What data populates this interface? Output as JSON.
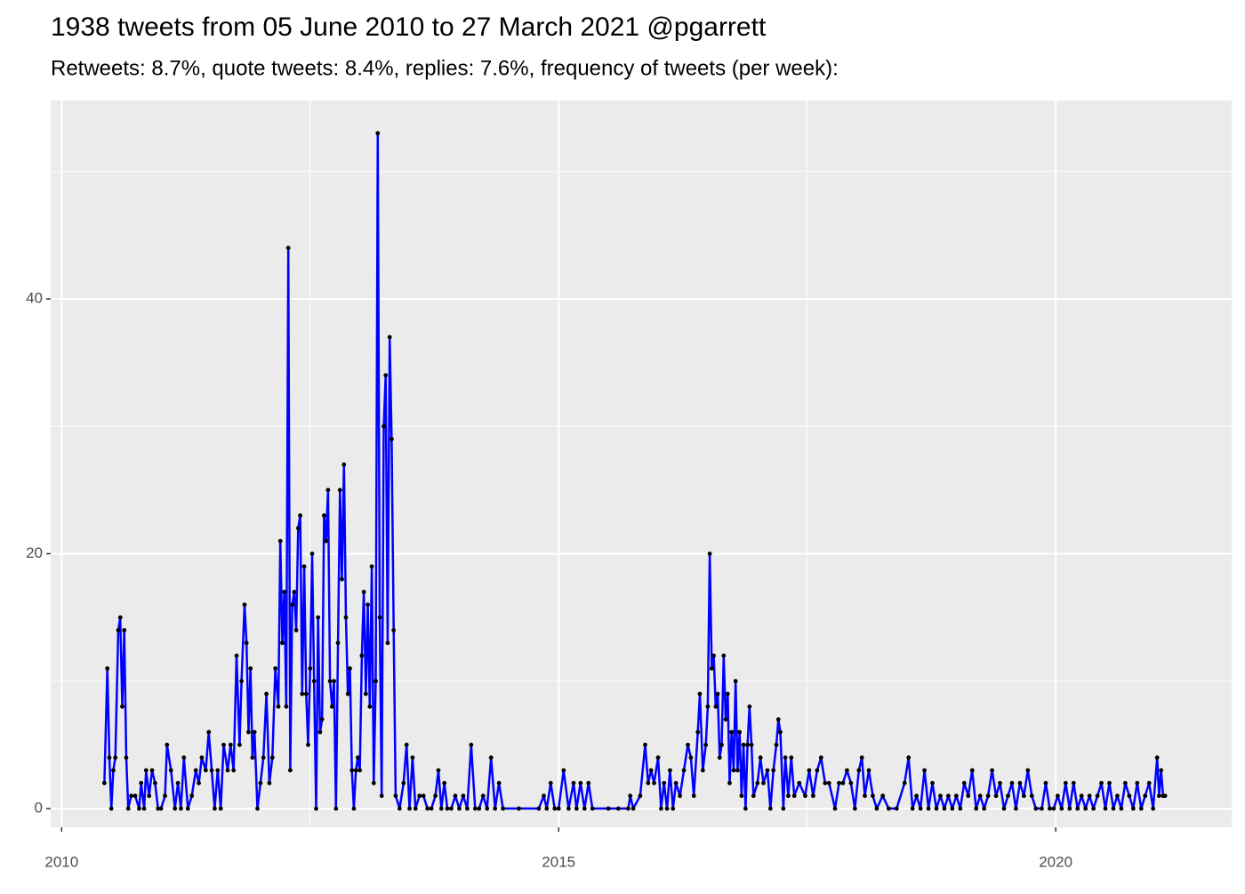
{
  "chart_data": {
    "type": "line",
    "title": "1938 tweets from 05 June 2010 to 27 March 2021 @pgarrett",
    "subtitle": "Retweets: 8.7%, quote tweets: 8.4%, replies: 7.6%, frequency of tweets (per week):",
    "color": "#0000ff",
    "point_color": "#000000",
    "grid": true,
    "xlim": [
      2009.89,
      2021.77
    ],
    "xticks": [
      2010,
      2015,
      2020
    ],
    "xminor": [
      2012.5,
      2017.5
    ],
    "ylim": [
      -1.47,
      55.57
    ],
    "yticks": [
      0,
      20,
      40
    ],
    "yminor": [
      10,
      30,
      50
    ],
    "x": [
      2010.43,
      2010.46,
      2010.48,
      2010.5,
      2010.52,
      2010.54,
      2010.57,
      2010.59,
      2010.61,
      2010.63,
      2010.65,
      2010.67,
      2010.7,
      2010.74,
      2010.78,
      2010.8,
      2010.83,
      2010.85,
      2010.88,
      2010.91,
      2010.94,
      2010.97,
      2011.0,
      2011.04,
      2011.06,
      2011.1,
      2011.14,
      2011.17,
      2011.2,
      2011.23,
      2011.27,
      2011.31,
      2011.35,
      2011.38,
      2011.41,
      2011.45,
      2011.48,
      2011.51,
      2011.54,
      2011.57,
      2011.6,
      2011.63,
      2011.67,
      2011.7,
      2011.73,
      2011.76,
      2011.79,
      2011.81,
      2011.84,
      2011.86,
      2011.88,
      2011.9,
      2011.92,
      2011.94,
      2011.97,
      2012.0,
      2012.03,
      2012.06,
      2012.09,
      2012.12,
      2012.15,
      2012.18,
      2012.2,
      2012.22,
      2012.24,
      2012.26,
      2012.28,
      2012.3,
      2012.32,
      2012.34,
      2012.36,
      2012.38,
      2012.4,
      2012.42,
      2012.44,
      2012.46,
      2012.48,
      2012.5,
      2012.52,
      2012.54,
      2012.56,
      2012.58,
      2012.6,
      2012.62,
      2012.64,
      2012.66,
      2012.68,
      2012.7,
      2012.72,
      2012.74,
      2012.76,
      2012.78,
      2012.8,
      2012.82,
      2012.84,
      2012.86,
      2012.88,
      2012.9,
      2012.92,
      2012.94,
      2012.96,
      2012.98,
      2013.0,
      2013.02,
      2013.04,
      2013.06,
      2013.08,
      2013.1,
      2013.12,
      2013.14,
      2013.16,
      2013.18,
      2013.2,
      2013.22,
      2013.24,
      2013.26,
      2013.28,
      2013.3,
      2013.32,
      2013.34,
      2013.36,
      2013.4,
      2013.44,
      2013.47,
      2013.5,
      2013.53,
      2013.56,
      2013.6,
      2013.64,
      2013.68,
      2013.72,
      2013.76,
      2013.79,
      2013.82,
      2013.85,
      2013.88,
      2013.92,
      2013.96,
      2014.0,
      2014.04,
      2014.08,
      2014.12,
      2014.16,
      2014.2,
      2014.24,
      2014.28,
      2014.32,
      2014.36,
      2014.4,
      2014.44,
      2014.6,
      2014.8,
      2014.85,
      2014.88,
      2014.92,
      2014.96,
      2015.0,
      2015.05,
      2015.1,
      2015.15,
      2015.18,
      2015.22,
      2015.26,
      2015.3,
      2015.34,
      2015.5,
      2015.6,
      2015.7,
      2015.72,
      2015.75,
      2015.82,
      2015.87,
      2015.9,
      2015.93,
      2015.96,
      2016.0,
      2016.03,
      2016.06,
      2016.09,
      2016.12,
      2016.15,
      2016.18,
      2016.22,
      2016.26,
      2016.3,
      2016.33,
      2016.36,
      2016.4,
      2016.42,
      2016.45,
      2016.48,
      2016.5,
      2016.52,
      2016.54,
      2016.56,
      2016.58,
      2016.6,
      2016.62,
      2016.64,
      2016.66,
      2016.68,
      2016.7,
      2016.72,
      2016.74,
      2016.76,
      2016.78,
      2016.8,
      2016.82,
      2016.84,
      2016.86,
      2016.88,
      2016.9,
      2016.92,
      2016.94,
      2016.96,
      2017.0,
      2017.03,
      2017.06,
      2017.1,
      2017.13,
      2017.16,
      2017.19,
      2017.21,
      2017.23,
      2017.26,
      2017.28,
      2017.31,
      2017.34,
      2017.37,
      2017.42,
      2017.48,
      2017.52,
      2017.56,
      2017.6,
      2017.64,
      2017.68,
      2017.72,
      2017.78,
      2017.82,
      2017.86,
      2017.9,
      2017.94,
      2017.98,
      2018.02,
      2018.05,
      2018.08,
      2018.12,
      2018.16,
      2018.2,
      2018.26,
      2018.32,
      2018.4,
      2018.48,
      2018.52,
      2018.56,
      2018.6,
      2018.64,
      2018.68,
      2018.72,
      2018.76,
      2018.8,
      2018.84,
      2018.88,
      2018.92,
      2018.96,
      2019.0,
      2019.04,
      2019.08,
      2019.12,
      2019.16,
      2019.2,
      2019.24,
      2019.28,
      2019.32,
      2019.36,
      2019.4,
      2019.44,
      2019.48,
      2019.52,
      2019.56,
      2019.6,
      2019.64,
      2019.68,
      2019.72,
      2019.76,
      2019.8,
      2019.86,
      2019.9,
      2019.94,
      2019.98,
      2020.02,
      2020.06,
      2020.1,
      2020.14,
      2020.18,
      2020.22,
      2020.26,
      2020.3,
      2020.34,
      2020.38,
      2020.42,
      2020.46,
      2020.5,
      2020.54,
      2020.58,
      2020.62,
      2020.66,
      2020.7,
      2020.74,
      2020.78,
      2020.82,
      2020.86,
      2020.9,
      2020.94,
      2020.98,
      2021.02,
      2021.04,
      2021.06,
      2021.08,
      2021.1
    ],
    "values": [
      2,
      11,
      4,
      0,
      3,
      4,
      14,
      15,
      8,
      14,
      4,
      0,
      1,
      1,
      0,
      2,
      0,
      3,
      1,
      3,
      2,
      0,
      0,
      1,
      5,
      3,
      0,
      2,
      0,
      4,
      0,
      1,
      3,
      2,
      4,
      3,
      6,
      3,
      0,
      3,
      0,
      5,
      3,
      5,
      3,
      12,
      5,
      10,
      16,
      13,
      6,
      11,
      4,
      6,
      0,
      2,
      4,
      9,
      2,
      4,
      11,
      8,
      21,
      13,
      17,
      8,
      44,
      3,
      16,
      17,
      14,
      22,
      23,
      9,
      19,
      9,
      5,
      11,
      20,
      10,
      0,
      15,
      6,
      7,
      23,
      21,
      25,
      10,
      8,
      10,
      0,
      13,
      25,
      18,
      27,
      15,
      9,
      11,
      3,
      0,
      3,
      4,
      3,
      12,
      17,
      9,
      16,
      8,
      19,
      2,
      10,
      53,
      15,
      1,
      30,
      34,
      13,
      37,
      29,
      14,
      1,
      0,
      2,
      5,
      0,
      4,
      0,
      1,
      1,
      0,
      0,
      1,
      3,
      0,
      2,
      0,
      0,
      1,
      0,
      1,
      0,
      5,
      0,
      0,
      1,
      0,
      4,
      0,
      2,
      0,
      0,
      0,
      1,
      0,
      2,
      0,
      0,
      3,
      0,
      2,
      0,
      2,
      0,
      2,
      0,
      0,
      0,
      0,
      1,
      0,
      1,
      5,
      2,
      3,
      2,
      4,
      0,
      2,
      0,
      3,
      0,
      2,
      1,
      3,
      5,
      4,
      1,
      6,
      9,
      3,
      5,
      8,
      20,
      11,
      12,
      8,
      9,
      4,
      5,
      12,
      7,
      9,
      2,
      6,
      3,
      10,
      3,
      6,
      1,
      5,
      0,
      5,
      8,
      5,
      1,
      2,
      4,
      2,
      3,
      0,
      3,
      5,
      7,
      6,
      0,
      4,
      1,
      4,
      1,
      2,
      1,
      3,
      1,
      3,
      4,
      2,
      2,
      0,
      2,
      2,
      3,
      2,
      0,
      3,
      4,
      1,
      3,
      1,
      0,
      1,
      0,
      0,
      2,
      4,
      0,
      1,
      0,
      3,
      0,
      2,
      0,
      1,
      0,
      1,
      0,
      1,
      0,
      2,
      1,
      3,
      0,
      1,
      0,
      1,
      3,
      1,
      2,
      0,
      1,
      2,
      0,
      2,
      1,
      3,
      1,
      0,
      0,
      2,
      0,
      0,
      1,
      0,
      2,
      0,
      2,
      0,
      1,
      0,
      1,
      0,
      1,
      2,
      0,
      2,
      0,
      1,
      0,
      2,
      1,
      0,
      2,
      0,
      1,
      2,
      0,
      4,
      1,
      3,
      1,
      1
    ]
  }
}
